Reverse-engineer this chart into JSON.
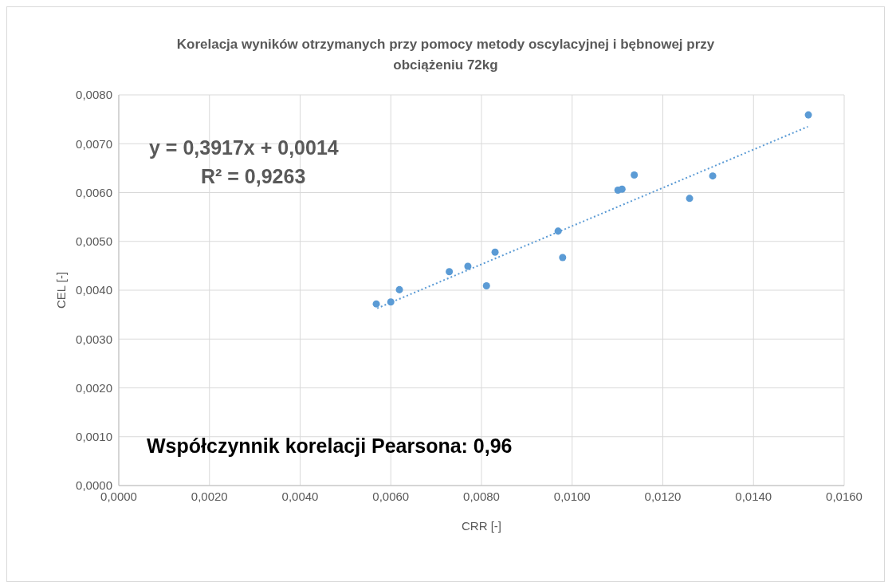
{
  "chart_data": {
    "type": "scatter",
    "title": "Korelacja wyników otrzymanych przy pomocy metody oscylacyjnej i bębnowej przy obciążeniu 72kg",
    "xlabel": "CRR [-]",
    "ylabel": "CEL [-]",
    "series": [
      {
        "color": "#5b9bd5",
        "marker": "circle",
        "x": [
          0.00568,
          0.006,
          0.00619,
          0.00729,
          0.0077,
          0.00811,
          0.0083,
          0.00969,
          0.00979,
          0.01101,
          0.0111,
          0.01137,
          0.01259,
          0.0131,
          0.01521
        ],
        "values": [
          0.00372,
          0.00376,
          0.00401,
          0.00438,
          0.00449,
          0.00409,
          0.00478,
          0.00521,
          0.00467,
          0.00605,
          0.00607,
          0.00636,
          0.00588,
          0.00634,
          0.00759
        ]
      },
      {
        "type": "line",
        "color": "#5b9bd5",
        "line_style": "dotted",
        "marker": "none",
        "x": [
          0.0057,
          0.0152
        ],
        "values": [
          0.00363,
          0.00735
        ]
      }
    ],
    "xlim": [
      0,
      0.016
    ],
    "xticks": [
      {
        "value": 0,
        "label": "0,0000"
      },
      {
        "value": 0.002,
        "label": "0,0020"
      },
      {
        "value": 0.004,
        "label": "0,0040"
      },
      {
        "value": 0.006,
        "label": "0,0060"
      },
      {
        "value": 0.008,
        "label": "0,0080"
      },
      {
        "value": 0.01,
        "label": "0,0100"
      },
      {
        "value": 0.012,
        "label": "0,0120"
      },
      {
        "value": 0.014,
        "label": "0,0140"
      },
      {
        "value": 0.016,
        "label": "0,0160"
      }
    ],
    "ylim": [
      0,
      0.008
    ],
    "yticks": [
      {
        "value": 0,
        "label": "0,0000"
      },
      {
        "value": 0.001,
        "label": "0,0010"
      },
      {
        "value": 0.002,
        "label": "0,0020"
      },
      {
        "value": 0.003,
        "label": "0,0030"
      },
      {
        "value": 0.004,
        "label": "0,0040"
      },
      {
        "value": 0.005,
        "label": "0,0050"
      },
      {
        "value": 0.006,
        "label": "0,0060"
      },
      {
        "value": 0.007,
        "label": "0,0070"
      },
      {
        "value": 0.008,
        "label": "0,0080"
      }
    ],
    "grid": true,
    "legend": false,
    "annotations": [
      "y = 0,3917x + 0,0014",
      "R² = 0,9263",
      "Współczynnik korelacji Pearsona: 0,96"
    ]
  }
}
